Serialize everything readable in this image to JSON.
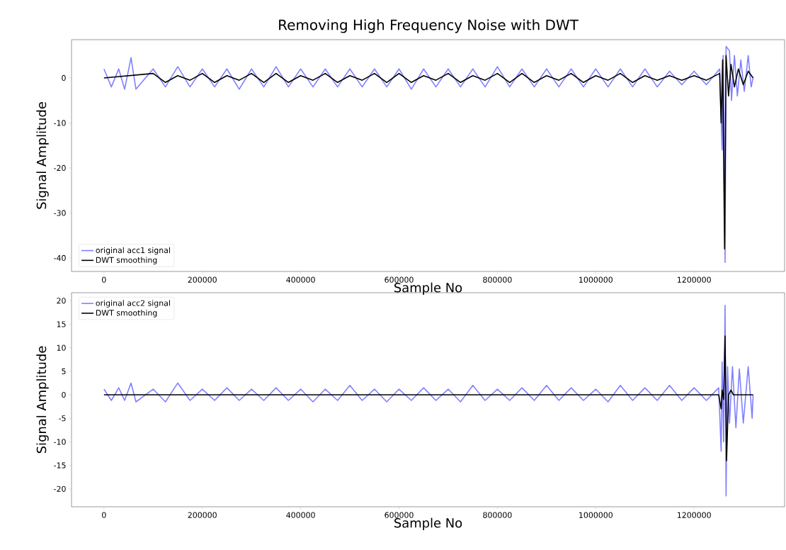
{
  "chart_data": [
    {
      "type": "line",
      "title": "Removing High Frequency Noise with DWT",
      "xlabel": "Sample No",
      "ylabel": "Signal Amplitude",
      "xlim": [
        -66000,
        1384000
      ],
      "ylim": [
        -43,
        8.5
      ],
      "xticks": [
        0,
        200000,
        400000,
        600000,
        800000,
        1000000,
        1200000
      ],
      "yticks": [
        -40,
        -30,
        -20,
        -10,
        0
      ],
      "legend": "bottom left",
      "series": [
        {
          "name": "original acc1 signal",
          "color": "#8080ff",
          "x": [
            0,
            15000,
            30000,
            42000,
            55000,
            65000,
            100000,
            125000,
            150000,
            175000,
            200000,
            225000,
            250000,
            275000,
            300000,
            325000,
            350000,
            375000,
            400000,
            425000,
            450000,
            475000,
            500000,
            525000,
            550000,
            575000,
            600000,
            625000,
            650000,
            675000,
            700000,
            725000,
            750000,
            775000,
            800000,
            825000,
            850000,
            875000,
            900000,
            925000,
            950000,
            975000,
            1000000,
            1025000,
            1050000,
            1075000,
            1100000,
            1125000,
            1150000,
            1175000,
            1200000,
            1225000,
            1252000,
            1255000,
            1257000,
            1259000,
            1261000,
            1263000,
            1265000,
            1268000,
            1272000,
            1276000,
            1282000,
            1288000,
            1295000,
            1302000,
            1310000,
            1316000,
            1320000
          ],
          "values": [
            2,
            -2,
            2,
            -2.5,
            4.5,
            -2.5,
            2,
            -2,
            2.5,
            -2,
            2,
            -2,
            2,
            -2.5,
            2,
            -2,
            2.5,
            -2,
            2,
            -2,
            2,
            -2,
            2,
            -2,
            2,
            -2,
            2,
            -2.5,
            2,
            -2,
            2,
            -2,
            2,
            -2,
            2.5,
            -2,
            2,
            -2,
            2,
            -2,
            2,
            -2,
            2,
            -2,
            2,
            -2,
            2,
            -2,
            1.5,
            -1.5,
            1.5,
            -1.5,
            2,
            -9,
            -16,
            5,
            -8,
            -41,
            7,
            null,
            6,
            -5,
            5,
            -4,
            4,
            -3,
            5,
            -2,
            0
          ]
        },
        {
          "name": "DWT smoothing",
          "color": "#000000",
          "x": [
            0,
            100000,
            125000,
            150000,
            175000,
            200000,
            225000,
            250000,
            275000,
            300000,
            325000,
            350000,
            375000,
            400000,
            425000,
            450000,
            475000,
            500000,
            525000,
            550000,
            575000,
            600000,
            625000,
            650000,
            675000,
            700000,
            725000,
            750000,
            775000,
            800000,
            825000,
            850000,
            875000,
            900000,
            925000,
            950000,
            975000,
            1000000,
            1025000,
            1050000,
            1075000,
            1100000,
            1125000,
            1150000,
            1175000,
            1200000,
            1225000,
            1252000,
            1255000,
            1258000,
            1262000,
            1265000,
            1270000,
            1275000,
            1282000,
            1290000,
            1300000,
            1310000,
            1320000
          ],
          "values": [
            0,
            1,
            -1,
            0.5,
            -0.5,
            1,
            -1,
            0.5,
            -0.5,
            1,
            -1,
            1,
            -1,
            0.5,
            -0.5,
            1,
            -1,
            0.5,
            -0.5,
            1,
            -1,
            1,
            -1,
            0.5,
            -0.5,
            1,
            -1,
            0.5,
            -0.5,
            1,
            -1,
            1,
            -1,
            0.5,
            -0.5,
            1,
            -1,
            0.5,
            -0.5,
            1,
            -1,
            0.5,
            -0.5,
            0.5,
            -0.5,
            0.5,
            -0.5,
            1,
            -10,
            4,
            -38,
            5,
            -4,
            3,
            -2,
            2,
            -1.5,
            1.5,
            0
          ]
        }
      ]
    },
    {
      "type": "line",
      "xlabel": "Sample No",
      "ylabel": "Signal Amplitude",
      "xlim": [
        -66000,
        1384000
      ],
      "ylim": [
        -23.8,
        21.7
      ],
      "xticks": [
        0,
        200000,
        400000,
        600000,
        800000,
        1000000,
        1200000
      ],
      "yticks": [
        -20,
        -15,
        -10,
        -5,
        0,
        5,
        10,
        15,
        20
      ],
      "legend": "top left",
      "series": [
        {
          "name": "original acc2 signal",
          "color": "#8080ff",
          "x": [
            0,
            15000,
            30000,
            42000,
            55000,
            65000,
            100000,
            125000,
            150000,
            175000,
            200000,
            225000,
            250000,
            275000,
            300000,
            325000,
            350000,
            375000,
            400000,
            425000,
            450000,
            475000,
            500000,
            525000,
            550000,
            575000,
            600000,
            625000,
            650000,
            675000,
            700000,
            725000,
            750000,
            775000,
            800000,
            825000,
            850000,
            875000,
            900000,
            925000,
            950000,
            975000,
            1000000,
            1025000,
            1050000,
            1075000,
            1100000,
            1125000,
            1150000,
            1175000,
            1200000,
            1225000,
            1250000,
            1255000,
            1257000,
            1260000,
            1263000,
            1265000,
            1268000,
            1272000,
            1278000,
            1285000,
            1292000,
            1300000,
            1310000,
            1318000,
            1320000
          ],
          "values": [
            1.2,
            -1.2,
            1.5,
            -1.2,
            2.5,
            -1.5,
            1.2,
            -1.5,
            2.5,
            -1.2,
            1.2,
            -1.2,
            1.5,
            -1.2,
            1.2,
            -1.2,
            1.5,
            -1.2,
            1.2,
            -1.5,
            1.2,
            -1.2,
            2,
            -1.2,
            1.2,
            -1.5,
            1.2,
            -1.2,
            1.5,
            -1.2,
            1.2,
            -1.5,
            2,
            -1.2,
            1.2,
            -1.2,
            1.5,
            -1.2,
            2,
            -1.2,
            1.5,
            -1.2,
            1.2,
            -1.5,
            2,
            -1.2,
            1.5,
            -1.2,
            2,
            -1.2,
            1.5,
            -1.2,
            1.5,
            -12,
            7,
            -10,
            19,
            -21.5,
            6,
            -6,
            6,
            -7,
            5.5,
            -6,
            6,
            -5,
            0
          ]
        },
        {
          "name": "DWT smoothing",
          "color": "#000000",
          "x": [
            0,
            1250000,
            1255000,
            1257000,
            1260000,
            1263000,
            1266000,
            1270000,
            1275000,
            1280000,
            1320000
          ],
          "values": [
            0,
            0,
            -3,
            1,
            -1,
            12.5,
            -14,
            0,
            1,
            0,
            0
          ]
        }
      ]
    }
  ]
}
